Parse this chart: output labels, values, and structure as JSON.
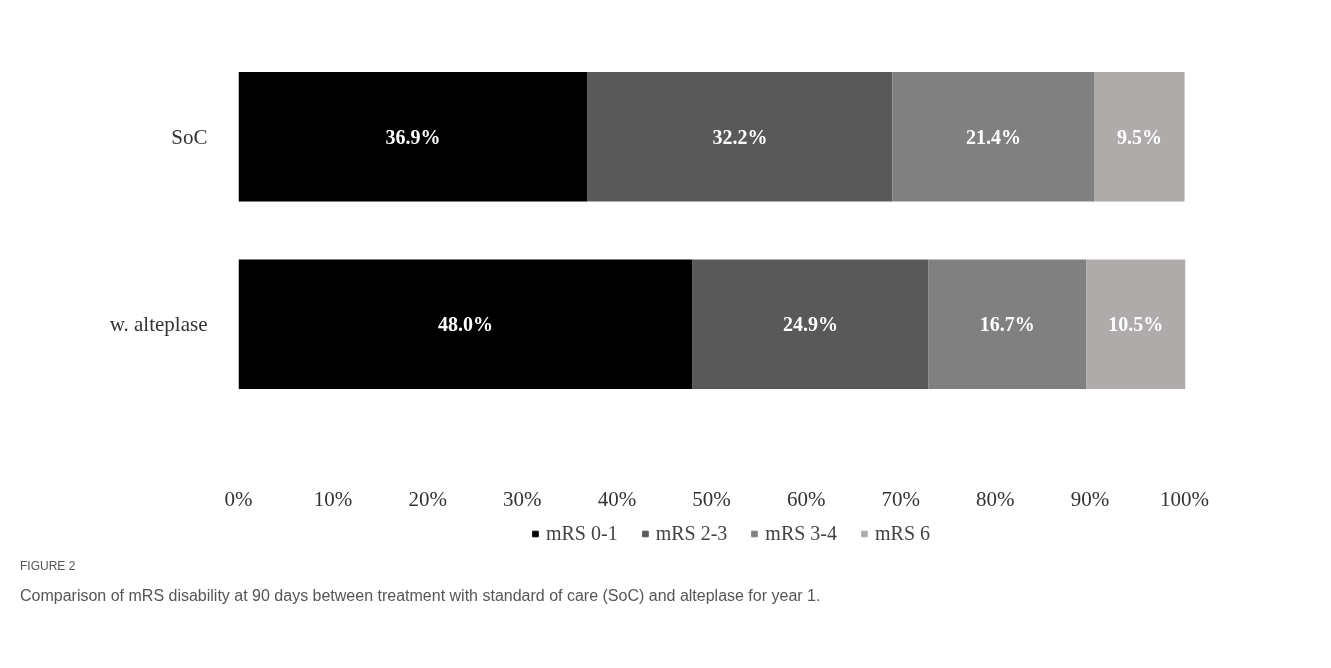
{
  "chart_data": {
    "type": "bar",
    "orientation": "horizontal",
    "stacked": true,
    "categories": [
      "SoC",
      "w. alteplase"
    ],
    "series": [
      {
        "name": "mRS 0-1",
        "color": "#000000",
        "values": [
          36.9,
          48.0
        ],
        "value_labels": [
          "36.9%",
          "48.0%"
        ]
      },
      {
        "name": "mRS 2-3",
        "color": "#595959",
        "values": [
          32.2,
          24.9
        ],
        "value_labels": [
          "32.2%",
          "24.9%"
        ]
      },
      {
        "name": "mRS 3-4",
        "color": "#808080",
        "values": [
          21.4,
          16.7
        ],
        "value_labels": [
          "21.4%",
          "16.7%"
        ]
      },
      {
        "name": "mRS 6",
        "color": "#afabab",
        "values": [
          9.5,
          10.5
        ],
        "value_labels": [
          "9.5%",
          "10.5%"
        ]
      }
    ],
    "xlim": [
      0,
      100.1
    ],
    "xticks": [
      {
        "value": 0,
        "label": "0%"
      },
      {
        "value": 10,
        "label": "10%"
      },
      {
        "value": 20,
        "label": "20%"
      },
      {
        "value": 30,
        "label": "30%"
      },
      {
        "value": 40,
        "label": "40%"
      },
      {
        "value": 50,
        "label": "50%"
      },
      {
        "value": 60,
        "label": "60%"
      },
      {
        "value": 70,
        "label": "70%"
      },
      {
        "value": 80,
        "label": "80%"
      },
      {
        "value": 90,
        "label": "90%"
      },
      {
        "value": 100,
        "label": "100%"
      }
    ],
    "grid": false,
    "legend": "bottom",
    "annotations": [
      "FIGURE 2",
      "Comparison of mRS disability at 90 days between treatment with standard of care (SoC) and alteplase for year 1."
    ]
  }
}
